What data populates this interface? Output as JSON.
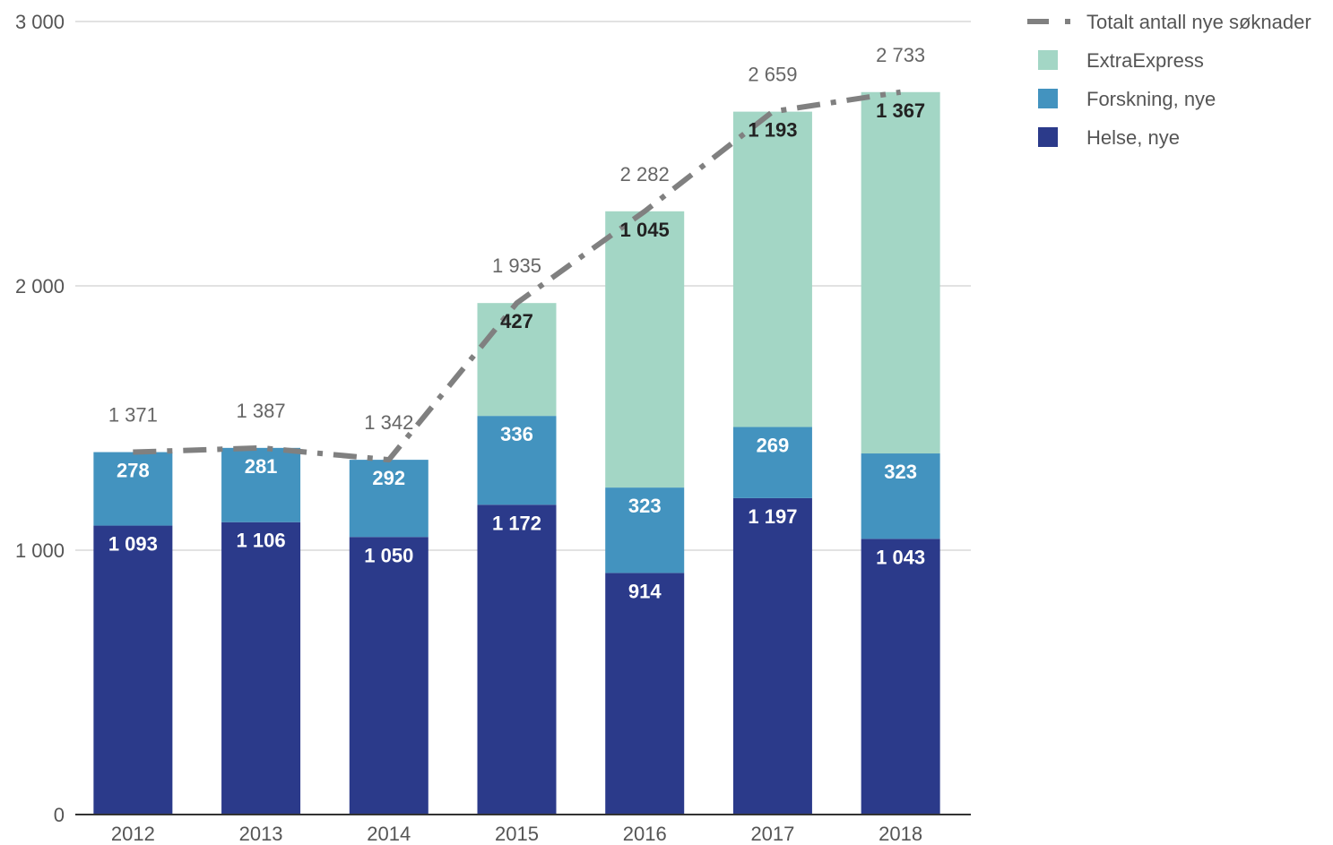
{
  "chart_data": {
    "type": "bar",
    "stacked": true,
    "categories": [
      "2012",
      "2013",
      "2014",
      "2015",
      "2016",
      "2017",
      "2018"
    ],
    "series": [
      {
        "name": "Helse, nye",
        "color": "#2b3a8a",
        "label_color": "#ffffff",
        "values": [
          1093,
          1106,
          1050,
          1172,
          914,
          1197,
          1043
        ],
        "labels": [
          "1 093",
          "1 106",
          "1 050",
          "1 172",
          "914",
          "1 197",
          "1 043"
        ]
      },
      {
        "name": "Forskning, nye",
        "color": "#4393bf",
        "label_color": "#ffffff",
        "values": [
          278,
          281,
          292,
          336,
          323,
          269,
          323
        ],
        "labels": [
          "278",
          "281",
          "292",
          "336",
          "323",
          "269",
          "323"
        ]
      },
      {
        "name": "ExtraExpress",
        "color": "#a3d6c5",
        "label_color": "#222222",
        "values": [
          0,
          0,
          0,
          427,
          1045,
          1193,
          1367
        ],
        "labels": [
          "",
          "",
          "",
          "427",
          "1 045",
          "1 193",
          "1 367"
        ]
      }
    ],
    "line_series": {
      "name": "Totalt antall nye søknader",
      "color": "#808080",
      "style": "dash-dot",
      "values": [
        1371,
        1387,
        1342,
        1935,
        2282,
        2659,
        2733
      ],
      "labels": [
        "1 371",
        "1 387",
        "1 342",
        "1 935",
        "2 282",
        "2 659",
        "2 733"
      ]
    },
    "ylim": [
      0,
      3000
    ],
    "yticks": [
      0,
      1000,
      2000,
      3000
    ],
    "ytick_labels": [
      "0",
      "1 000",
      "2 000",
      "3 000"
    ],
    "grid": true,
    "legend_position": "top-right",
    "legend_order": [
      "Totalt antall nye søknader",
      "ExtraExpress",
      "Forskning, nye",
      "Helse, nye"
    ]
  }
}
